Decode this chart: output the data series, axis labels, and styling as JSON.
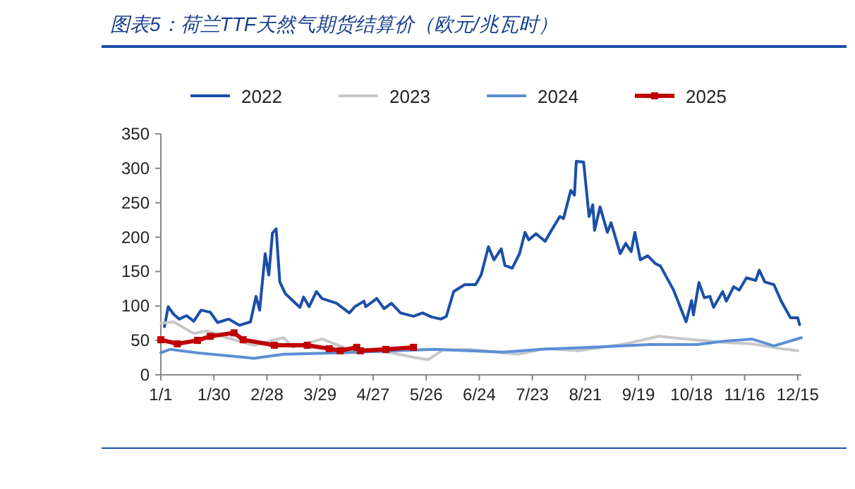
{
  "chart_data": {
    "type": "line",
    "title": "图表5：荷兰TTF天然气期货结算价（欧元/兆瓦时）",
    "legend": "top",
    "grid": false,
    "line_style": "solid",
    "xlim": [
      "--01-01",
      "--12-17"
    ],
    "ylim": [
      0,
      350
    ],
    "yticks": [
      0,
      50,
      100,
      150,
      200,
      250,
      300,
      350
    ],
    "xticks": [
      {
        "value": "--01-01",
        "label": "1/1"
      },
      {
        "value": "--01-30",
        "label": "1/30"
      },
      {
        "value": "--02-28",
        "label": "2/28"
      },
      {
        "value": "--03-29",
        "label": "3/29"
      },
      {
        "value": "--04-27",
        "label": "4/27"
      },
      {
        "value": "--05-26",
        "label": "5/26"
      },
      {
        "value": "--06-24",
        "label": "6/24"
      },
      {
        "value": "--07-23",
        "label": "7/23"
      },
      {
        "value": "--08-21",
        "label": "8/21"
      },
      {
        "value": "--09-19",
        "label": "9/19"
      },
      {
        "value": "--10-18",
        "label": "10/18"
      },
      {
        "value": "--11-16",
        "label": "11/16"
      },
      {
        "value": "--12-15",
        "label": "12/15"
      }
    ],
    "series": [
      {
        "name": "2022",
        "color": "#1a4fa8",
        "marker": "none",
        "x": [
          "--01-03",
          "--01-05",
          "--01-08",
          "--01-11",
          "--01-15",
          "--01-19",
          "--01-23",
          "--01-28",
          "--02-01",
          "--02-07",
          "--02-13",
          "--02-19",
          "--02-22",
          "--02-24",
          "--02-27",
          "--03-01",
          "--03-03",
          "--03-05",
          "--03-07",
          "--03-10",
          "--03-18",
          "--03-20",
          "--03-23",
          "--03-27",
          "--03-30",
          "--04-07",
          "--04-14",
          "--04-17",
          "--04-22",
          "--04-23",
          "--04-29",
          "--05-03",
          "--05-07",
          "--05-12",
          "--05-19",
          "--05-24",
          "--05-29",
          "--06-03",
          "--06-06",
          "--06-10",
          "--06-16",
          "--06-22",
          "--06-25",
          "--06-29",
          "--07-02",
          "--07-06",
          "--07-08",
          "--07-12",
          "--07-16",
          "--07-19",
          "--07-21",
          "--07-25",
          "--07-30",
          "--08-02",
          "--08-07",
          "--08-09",
          "--08-13",
          "--08-15",
          "--08-16",
          "--08-20",
          "--08-23",
          "--08-25",
          "--08-26",
          "--08-29",
          "--09-02",
          "--09-04",
          "--09-07",
          "--09-09",
          "--09-12",
          "--09-15",
          "--09-17",
          "--09-20",
          "--09-24",
          "--09-28",
          "--10-01",
          "--10-08",
          "--10-15",
          "--10-18",
          "--10-19",
          "--10-22",
          "--10-25",
          "--10-28",
          "--10-30",
          "--11-04",
          "--11-06",
          "--11-10",
          "--11-13",
          "--11-17",
          "--11-22",
          "--11-24",
          "--11-27",
          "--12-02",
          "--12-06",
          "--12-11",
          "--12-15",
          "--12-16"
        ],
        "values": [
          70,
          99,
          88,
          81,
          86,
          78,
          94,
          91,
          76,
          81,
          72,
          77,
          114,
          94,
          176,
          145,
          206,
          212,
          135,
          118,
          98,
          113,
          99,
          121,
          111,
          104,
          90,
          99,
          107,
          99,
          111,
          96,
          104,
          90,
          85,
          90,
          84,
          81,
          85,
          121,
          131,
          131,
          145,
          186,
          167,
          183,
          159,
          155,
          176,
          207,
          196,
          205,
          194,
          208,
          230,
          227,
          268,
          261,
          310,
          309,
          230,
          247,
          210,
          244,
          207,
          221,
          194,
          176,
          191,
          179,
          207,
          167,
          173,
          162,
          158,
          124,
          77,
          108,
          87,
          134,
          112,
          114,
          98,
          121,
          107,
          128,
          123,
          141,
          137,
          152,
          135,
          131,
          107,
          83,
          83,
          73
        ]
      },
      {
        "name": "2023",
        "color": "#c8c8c8",
        "marker": "none",
        "x": [
          "--01-01",
          "--01-08",
          "--01-19",
          "--01-26",
          "--02-06",
          "--02-21",
          "--03-09",
          "--03-14",
          "--03-30",
          "--04-14",
          "--05-07",
          "--05-20",
          "--05-27",
          "--06-04",
          "--06-19",
          "--07-15",
          "--07-30",
          "--08-17",
          "--09-12",
          "--09-30",
          "--10-15",
          "--11-05",
          "--11-20",
          "--12-06",
          "--12-15"
        ],
        "values": [
          75,
          77,
          60,
          64,
          54,
          43,
          54,
          40,
          52,
          37,
          32,
          25,
          22,
          36,
          37,
          30,
          38,
          35,
          45,
          56,
          52,
          47,
          45,
          38,
          35
        ]
      },
      {
        "name": "2024",
        "color": "#5b8fd6",
        "marker": "none",
        "x": [
          "--01-01",
          "--01-06",
          "--01-21",
          "--02-21",
          "--03-09",
          "--04-08",
          "--05-30",
          "--07-07",
          "--07-27",
          "--08-23",
          "--09-25",
          "--10-21",
          "--11-05",
          "--11-20",
          "--12-02",
          "--12-17"
        ],
        "values": [
          32,
          37,
          32,
          24,
          30,
          32,
          37,
          33,
          37,
          40,
          44,
          44,
          49,
          52,
          42,
          54
        ]
      },
      {
        "name": "2025",
        "color": "#c00000",
        "marker": "square",
        "x": [
          "--01-01",
          "--01-10",
          "--01-21",
          "--01-28",
          "--02-10",
          "--02-15",
          "--03-04",
          "--03-22",
          "--04-03",
          "--04-09",
          "--04-18",
          "--04-20",
          "--05-04",
          "--05-19"
        ],
        "values": [
          51,
          45,
          50,
          56,
          61,
          51,
          43,
          43,
          38,
          35,
          40,
          35,
          37,
          40
        ]
      }
    ]
  }
}
